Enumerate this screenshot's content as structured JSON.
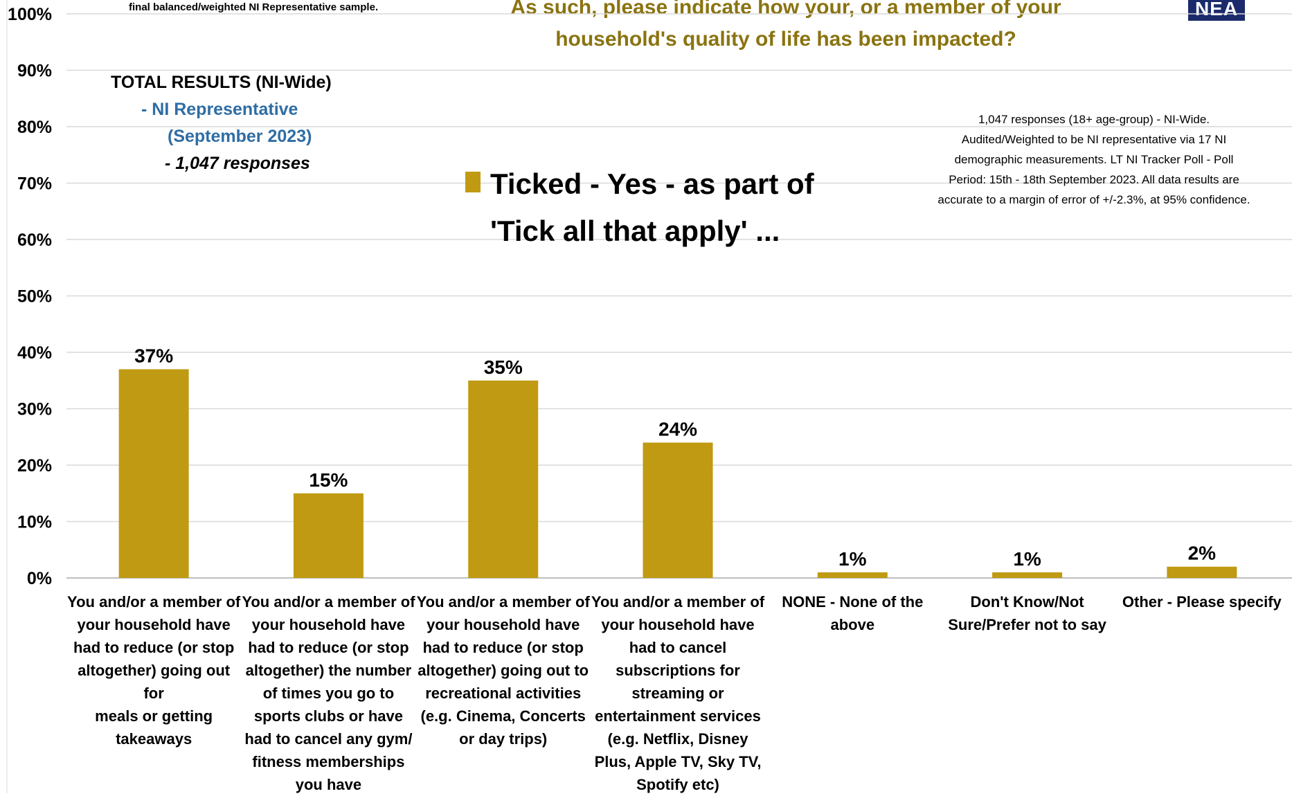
{
  "header": {
    "top_note": "final balanced/weighted NI Representative sample.",
    "title_line1": "As such, please indicate how your, or a member of your",
    "title_line2": "household's quality of life has been impacted?",
    "logo_text": "NEA"
  },
  "summary": {
    "line1": "TOTAL RESULTS (NI-Wide)",
    "line2": "- NI Representative",
    "line3": "(September 2023)",
    "line4": "- 1,047 responses"
  },
  "legend": {
    "line1": "Ticked - Yes - as part of",
    "line2": "'Tick all that apply' ..."
  },
  "methodology": [
    "1,047 responses (18+ age-group) - NI-Wide.",
    "Audited/Weighted to be NI representative via 17 NI",
    "demographic measurements. LT NI Tracker Poll - Poll",
    "Period: 15th - 18th September 2023. All data results are",
    "accurate to a margin of error of +/-2.3%, at 95% confidence."
  ],
  "chart_data": {
    "type": "bar",
    "title": "",
    "ylabel": "",
    "xlabel": "",
    "ylim": [
      0,
      100
    ],
    "yticks": [
      "0%",
      "10%",
      "20%",
      "30%",
      "40%",
      "50%",
      "60%",
      "70%",
      "80%",
      "90%",
      "100%"
    ],
    "grid": true,
    "bar_color": "#c09a12",
    "categories": [
      [
        "You and/or a member of",
        "your household have",
        "had to reduce (or stop",
        "altogether) going out for",
        "meals or getting",
        "takeaways"
      ],
      [
        "You and/or a member of",
        "your household have",
        "had to reduce (or stop",
        "altogether) the number",
        "of times you go to",
        "sports clubs or have",
        "had to cancel any gym/",
        "fitness memberships",
        "you have"
      ],
      [
        "You and/or a member of",
        "your household have",
        "had to reduce (or stop",
        "altogether) going out to",
        "recreational activities",
        "(e.g. Cinema, Concerts",
        "or day trips)"
      ],
      [
        "You and/or a member of",
        "your household have",
        "had to cancel",
        "subscriptions for",
        "streaming or",
        "entertainment services",
        "(e.g. Netflix, Disney",
        "Plus, Apple TV, Sky TV,",
        "Spotify etc)"
      ],
      [
        "NONE - None of the",
        "above"
      ],
      [
        "Don't Know/Not",
        "Sure/Prefer not to say"
      ],
      [
        "Other - Please specify"
      ]
    ],
    "values": [
      37,
      15,
      35,
      24,
      1,
      1,
      2
    ],
    "labels": [
      "37%",
      "15%",
      "35%",
      "24%",
      "1%",
      "1%",
      "2%"
    ]
  }
}
